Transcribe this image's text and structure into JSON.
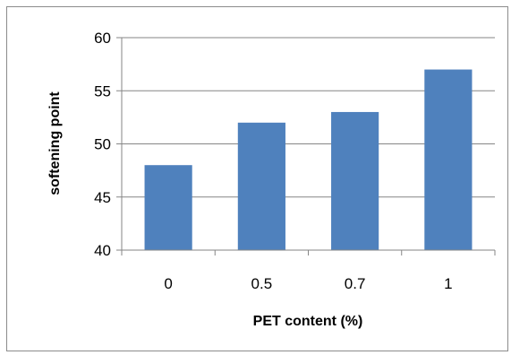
{
  "chart_data": {
    "type": "bar",
    "title": "",
    "xlabel": "PET content (%)",
    "ylabel": "softening point",
    "categories": [
      "0",
      "0.5",
      "0.7",
      "1"
    ],
    "values": [
      48,
      52,
      53,
      57
    ],
    "ylim": [
      40,
      60
    ],
    "yticks": [
      "40",
      "45",
      "50",
      "55",
      "60"
    ],
    "grid": true,
    "legend": "none",
    "bar_color": "#4f81bd",
    "grid_color": "#868686"
  }
}
